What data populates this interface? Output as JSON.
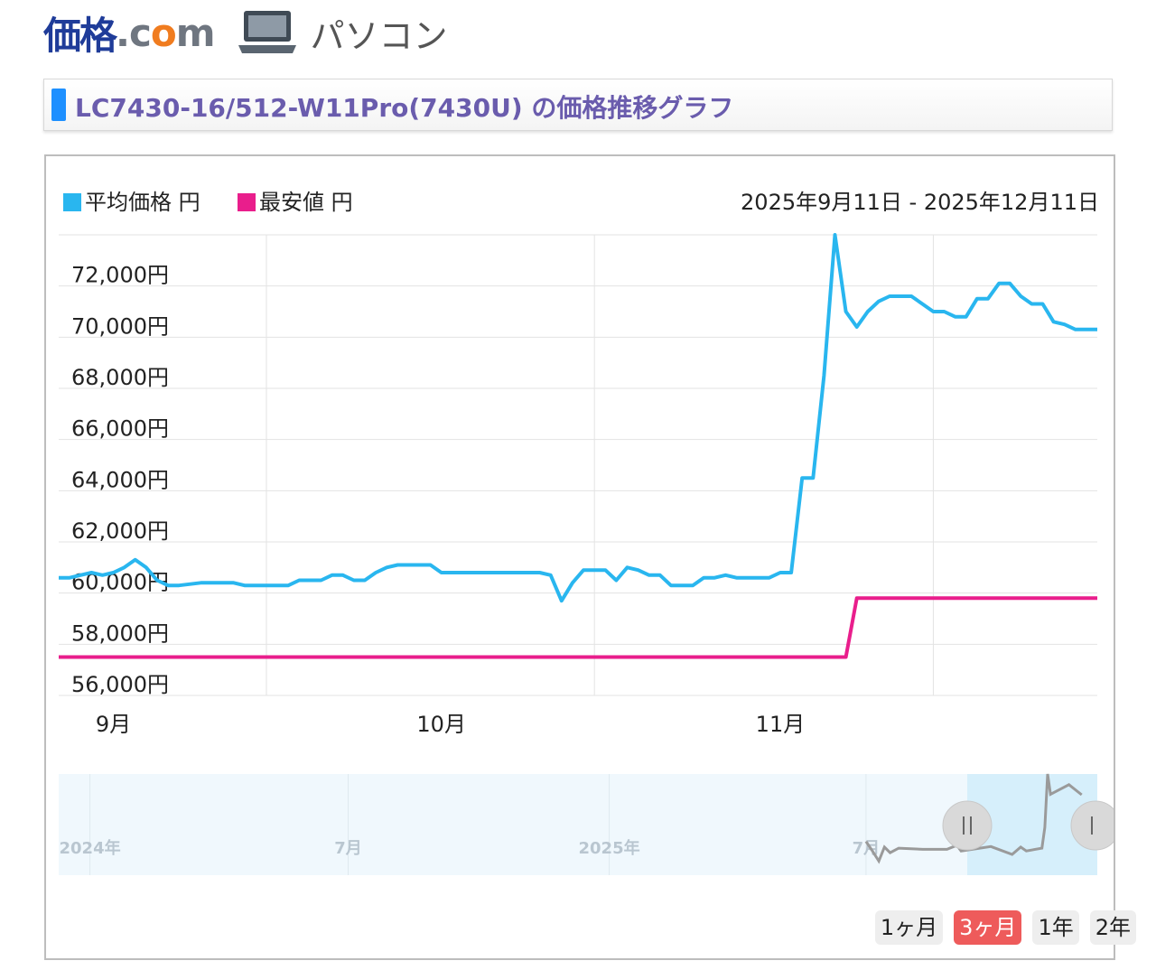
{
  "header": {
    "logo_main": "価格",
    "logo_dot": ".c",
    "logo_o": "o",
    "logo_m": "m",
    "category": "パソコン"
  },
  "title": "LC7430-16/512-W11Pro(7430U) の価格推移グラフ",
  "colors": {
    "average": "#29b6ef",
    "lowest": "#e91e8c",
    "title_text": "#6a5cad",
    "active_button": "#ee5b5b"
  },
  "chart_data": {
    "type": "line",
    "date_range": "2025年9月11日 - 2025年12月11日",
    "y_ticks": [
      "56,000円",
      "58,000円",
      "60,000円",
      "62,000円",
      "64,000円",
      "66,000円",
      "68,000円",
      "70,000円",
      "72,000円"
    ],
    "ylim": [
      56000,
      74000
    ],
    "x_ticks": [
      "9月",
      "10月",
      "11月"
    ],
    "x_tick_dates": [
      "2025-09-01",
      "2025-10-01",
      "2025-11-01"
    ],
    "series": [
      {
        "name": "平均価格 円",
        "color": "#29b6ef",
        "points": [
          [
            "2025-08-27",
            60600
          ],
          [
            "2025-08-28",
            60600
          ],
          [
            "2025-08-29",
            60700
          ],
          [
            "2025-08-30",
            60800
          ],
          [
            "2025-08-31",
            60700
          ],
          [
            "2025-09-01",
            60800
          ],
          [
            "2025-09-02",
            61000
          ],
          [
            "2025-09-03",
            61300
          ],
          [
            "2025-09-04",
            61000
          ],
          [
            "2025-09-05",
            60500
          ],
          [
            "2025-09-06",
            60300
          ],
          [
            "2025-09-07",
            60300
          ],
          [
            "2025-09-09",
            60400
          ],
          [
            "2025-09-12",
            60400
          ],
          [
            "2025-09-13",
            60300
          ],
          [
            "2025-09-17",
            60300
          ],
          [
            "2025-09-18",
            60500
          ],
          [
            "2025-09-20",
            60500
          ],
          [
            "2025-09-21",
            60700
          ],
          [
            "2025-09-22",
            60700
          ],
          [
            "2025-09-23",
            60500
          ],
          [
            "2025-09-24",
            60500
          ],
          [
            "2025-09-25",
            60800
          ],
          [
            "2025-09-26",
            61000
          ],
          [
            "2025-09-27",
            61100
          ],
          [
            "2025-09-30",
            61100
          ],
          [
            "2025-10-01",
            60800
          ],
          [
            "2025-10-10",
            60800
          ],
          [
            "2025-10-11",
            60700
          ],
          [
            "2025-10-12",
            59700
          ],
          [
            "2025-10-13",
            60400
          ],
          [
            "2025-10-14",
            60900
          ],
          [
            "2025-10-16",
            60900
          ],
          [
            "2025-10-17",
            60500
          ],
          [
            "2025-10-18",
            61000
          ],
          [
            "2025-10-19",
            60900
          ],
          [
            "2025-10-20",
            60700
          ],
          [
            "2025-10-21",
            60700
          ],
          [
            "2025-10-22",
            60300
          ],
          [
            "2025-10-24",
            60300
          ],
          [
            "2025-10-25",
            60600
          ],
          [
            "2025-10-26",
            60600
          ],
          [
            "2025-10-27",
            60700
          ],
          [
            "2025-10-28",
            60600
          ],
          [
            "2025-10-31",
            60600
          ],
          [
            "2025-11-01",
            60800
          ],
          [
            "2025-11-02",
            60800
          ],
          [
            "2025-11-03",
            64500
          ],
          [
            "2025-11-04",
            64500
          ],
          [
            "2025-11-05",
            68500
          ],
          [
            "2025-11-06",
            74000
          ],
          [
            "2025-11-07",
            71000
          ],
          [
            "2025-11-08",
            70400
          ],
          [
            "2025-11-09",
            71000
          ],
          [
            "2025-11-10",
            71400
          ],
          [
            "2025-11-11",
            71600
          ],
          [
            "2025-11-13",
            71600
          ],
          [
            "2025-11-14",
            71300
          ],
          [
            "2025-11-15",
            71000
          ],
          [
            "2025-11-16",
            71000
          ],
          [
            "2025-11-17",
            70800
          ],
          [
            "2025-11-18",
            70800
          ],
          [
            "2025-11-19",
            71500
          ],
          [
            "2025-11-20",
            71500
          ],
          [
            "2025-11-21",
            72100
          ],
          [
            "2025-11-22",
            72100
          ],
          [
            "2025-11-23",
            71600
          ],
          [
            "2025-11-24",
            71300
          ],
          [
            "2025-11-25",
            71300
          ],
          [
            "2025-11-26",
            70600
          ],
          [
            "2025-11-27",
            70500
          ],
          [
            "2025-11-28",
            70300
          ],
          [
            "2025-11-30",
            70300
          ]
        ]
      },
      {
        "name": "最安値 円",
        "color": "#e91e8c",
        "points": [
          [
            "2025-08-27",
            57500
          ],
          [
            "2025-11-07",
            57500
          ],
          [
            "2025-11-08",
            59800
          ],
          [
            "2025-11-30",
            59800
          ]
        ]
      }
    ],
    "navigator": {
      "labels": [
        "2024年",
        "7月",
        "2025年",
        "7月"
      ],
      "label_dates": [
        "2024-01-01",
        "2024-07-01",
        "2025-01-01",
        "2025-07-01"
      ]
    }
  },
  "range_buttons": [
    {
      "label": "1ヶ月",
      "active": false
    },
    {
      "label": "3ヶ月",
      "active": true
    },
    {
      "label": "1年",
      "active": false
    },
    {
      "label": "2年",
      "active": false
    }
  ]
}
